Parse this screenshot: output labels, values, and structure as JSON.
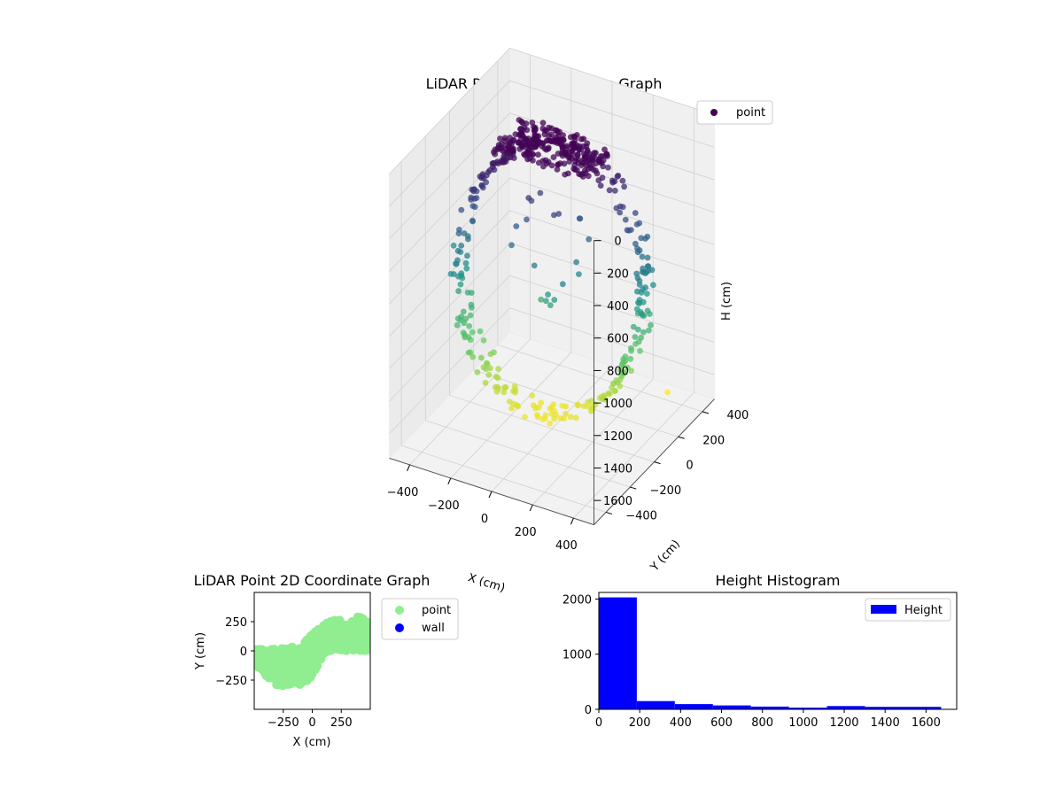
{
  "chart_data": [
    {
      "id": "lidar-3d",
      "type": "scatter",
      "title": "LiDAR Point 3D Coordinate Graph",
      "xlabel": "X (cm)",
      "ylabel": "Y (cm)",
      "zlabel": "H (cm)",
      "xlim": [
        -500,
        500
      ],
      "ylim": [
        -500,
        500
      ],
      "zlim": [
        0,
        1750
      ],
      "z_inverted": true,
      "x_ticks": [
        -400,
        -200,
        0,
        200,
        400
      ],
      "x_tick_labels": [
        "−400",
        "−200",
        "0",
        "200",
        "400"
      ],
      "y_ticks": [
        -400,
        -200,
        0,
        200,
        400
      ],
      "y_tick_labels": [
        "−400",
        "−200",
        "0",
        "200",
        "400"
      ],
      "z_ticks": [
        0,
        200,
        400,
        600,
        800,
        1000,
        1200,
        1400,
        1600
      ],
      "z_tick_labels": [
        "0",
        "200",
        "400",
        "600",
        "800",
        "1000",
        "1200",
        "1400",
        "1600"
      ],
      "colormap": "viridis",
      "color_by": "height",
      "legend": {
        "placement": "top-right",
        "entries": [
          {
            "label": "point",
            "color": "#440154"
          }
        ]
      },
      "series": [
        {
          "name": "point",
          "description_values": "ring of points: radius ~380 cm in X, ~100 cm in Y, heights 0 to ~1660 cm; a cluster of ~2000 points near height 0-150 cm; sparse interior points"
        }
      ],
      "outliers": [
        {
          "x": -480,
          "y": 0,
          "z": 820
        },
        {
          "x": 330,
          "y": 400,
          "z": 1700
        },
        {
          "x": -150,
          "y": -80,
          "z": 620
        },
        {
          "x": -50,
          "y": -60,
          "z": 720
        }
      ]
    },
    {
      "id": "lidar-2d",
      "type": "scatter",
      "title": "LiDAR Point 2D Coordinate Graph",
      "xlabel": "X (cm)",
      "ylabel": "Y (cm)",
      "xlim": [
        -500,
        500
      ],
      "ylim": [
        -500,
        500
      ],
      "x_ticks": [
        -250,
        0,
        250
      ],
      "x_tick_labels": [
        "−250",
        "0",
        "250"
      ],
      "y_ticks": [
        -250,
        0,
        250
      ],
      "y_tick_labels": [
        "−250",
        "0",
        "250"
      ],
      "legend": {
        "placement": "outside-right",
        "entries": [
          {
            "label": "point",
            "color": "#90ee90"
          },
          {
            "label": "wall",
            "color": "#0000ff"
          }
        ]
      },
      "series": [
        {
          "name": "point",
          "color": "#90ee90",
          "band": [
            {
              "x": -500,
              "y_min": -120,
              "y_max": 10
            },
            {
              "x": -300,
              "y_min": -300,
              "y_max": 20
            },
            {
              "x": -100,
              "y_min": -300,
              "y_max": 40
            },
            {
              "x": 0,
              "y_min": -220,
              "y_max": 150
            },
            {
              "x": 100,
              "y_min": -20,
              "y_max": 220
            },
            {
              "x": 200,
              "y_min": 0,
              "y_max": 310
            },
            {
              "x": 300,
              "y_min": 0,
              "y_max": 220
            },
            {
              "x": 400,
              "y_min": 0,
              "y_max": 300
            },
            {
              "x": 500,
              "y_min": 0,
              "y_max": 240
            }
          ]
        },
        {
          "name": "wall",
          "color": "#0000ff",
          "values": []
        }
      ]
    },
    {
      "id": "height-hist",
      "type": "bar",
      "title": "Height Histogram",
      "xlabel": "",
      "ylabel": "",
      "xlim": [
        0,
        1750
      ],
      "ylim": [
        0,
        2120
      ],
      "x_ticks": [
        0,
        200,
        400,
        600,
        800,
        1000,
        1200,
        1400,
        1600
      ],
      "y_ticks": [
        0,
        1000,
        2000
      ],
      "bin_edges": [
        0,
        186,
        372,
        558,
        744,
        930,
        1116,
        1302,
        1488,
        1674
      ],
      "values": [
        2030,
        150,
        95,
        70,
        50,
        30,
        60,
        45,
        45
      ],
      "color": "#0000ff",
      "legend": {
        "placement": "top-right",
        "entries": [
          {
            "label": "Height",
            "color": "#0000ff"
          }
        ]
      }
    }
  ]
}
